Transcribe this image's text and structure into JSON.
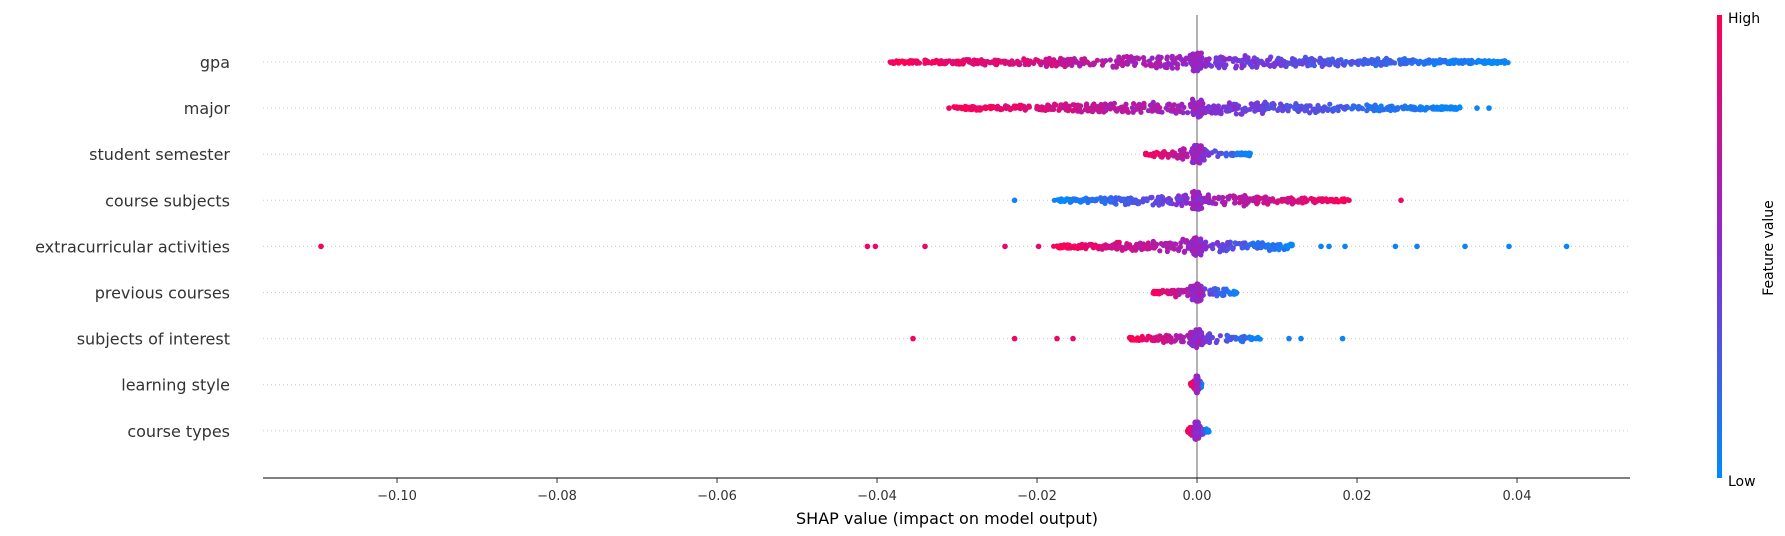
{
  "chart_data": {
    "type": "scatter",
    "subtype": "shap-beeswarm-summary",
    "xlabel": "SHAP value (impact on model output)",
    "xlim": [
      -0.117,
      0.054
    ],
    "xticks": [
      -0.1,
      -0.08,
      -0.06,
      -0.04,
      -0.02,
      0.0,
      0.02,
      0.04
    ],
    "xtick_labels": [
      "−0.10",
      "−0.08",
      "−0.06",
      "−0.04",
      "−0.02",
      "0.00",
      "0.02",
      "0.04"
    ],
    "features": [
      {
        "name": "gpa",
        "range": [
          -0.0385,
          0.0393
        ],
        "high_side": "negative",
        "outliers": []
      },
      {
        "name": "major",
        "range": [
          -0.0305,
          0.033
        ],
        "high_side": "negative",
        "outliers": [
          {
            "x": -0.031,
            "v": 0.92
          },
          {
            "x": -0.0282,
            "v": 0.9
          },
          {
            "x": -0.0272,
            "v": 0.88
          },
          {
            "x": 0.03,
            "v": 0.04
          },
          {
            "x": 0.035,
            "v": 0.03
          },
          {
            "x": 0.0365,
            "v": 0.02
          }
        ]
      },
      {
        "name": "student semester",
        "range": [
          -0.0065,
          0.0068
        ],
        "high_side": "negative",
        "outliers": []
      },
      {
        "name": "course subjects",
        "range": [
          -0.018,
          0.019
        ],
        "high_side": "positive",
        "outliers": [
          {
            "x": -0.0228,
            "v": 0.05
          },
          {
            "x": 0.019,
            "v": 0.92
          },
          {
            "x": 0.0255,
            "v": 0.95
          }
        ]
      },
      {
        "name": "extracurricular activities",
        "range": [
          -0.018,
          0.012
        ],
        "high_side": "negative",
        "outliers": [
          {
            "x": -0.1095,
            "v": 0.95
          },
          {
            "x": -0.0412,
            "v": 0.92
          },
          {
            "x": -0.0402,
            "v": 0.9
          },
          {
            "x": -0.034,
            "v": 0.92
          },
          {
            "x": -0.024,
            "v": 0.9
          },
          {
            "x": -0.0198,
            "v": 0.88
          },
          {
            "x": 0.0155,
            "v": 0.05
          },
          {
            "x": 0.0165,
            "v": 0.04
          },
          {
            "x": 0.0185,
            "v": 0.05
          },
          {
            "x": 0.0248,
            "v": 0.04
          },
          {
            "x": 0.0275,
            "v": 0.05
          },
          {
            "x": 0.0335,
            "v": 0.04
          },
          {
            "x": 0.039,
            "v": 0.03
          },
          {
            "x": 0.0462,
            "v": 0.02
          }
        ]
      },
      {
        "name": "previous courses",
        "range": [
          -0.0055,
          0.0052
        ],
        "high_side": "negative",
        "outliers": []
      },
      {
        "name": "subjects of interest",
        "range": [
          -0.0085,
          0.008
        ],
        "high_side": "negative",
        "outliers": [
          {
            "x": -0.0355,
            "v": 0.95
          },
          {
            "x": -0.0228,
            "v": 0.93
          },
          {
            "x": -0.0175,
            "v": 0.92
          },
          {
            "x": -0.0155,
            "v": 0.9
          },
          {
            "x": 0.0115,
            "v": 0.05
          },
          {
            "x": 0.013,
            "v": 0.04
          },
          {
            "x": 0.0182,
            "v": 0.03
          }
        ]
      },
      {
        "name": "learning style",
        "range": [
          -0.0008,
          0.0006
        ],
        "high_side": "negative",
        "outliers": []
      },
      {
        "name": "course types",
        "range": [
          -0.0012,
          0.0015
        ],
        "high_side": "negative",
        "outliers": []
      }
    ],
    "colorbar": {
      "label": "Feature value",
      "high_label": "High",
      "low_label": "Low",
      "low_color": "#008bfb",
      "high_color": "#ff0052"
    },
    "zero_line_color": "#999999"
  }
}
